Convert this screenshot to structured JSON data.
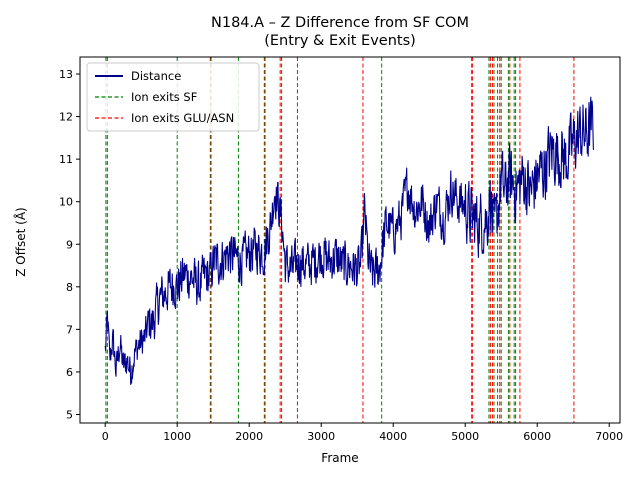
{
  "chart_data": {
    "type": "line",
    "title": "N184.A – Z Difference from SF COM",
    "subtitle": "(Entry & Exit Events)",
    "xlabel": "Frame",
    "ylabel": "Z Offset (Å)",
    "xlim": [
      -350,
      7150
    ],
    "ylim": [
      4.8,
      13.4
    ],
    "xticks": [
      0,
      1000,
      2000,
      3000,
      4000,
      5000,
      6000,
      7000
    ],
    "xtick_labels": [
      "0",
      "1000",
      "2000",
      "3000",
      "4000",
      "5000",
      "6000",
      "7000"
    ],
    "yticks": [
      5,
      6,
      7,
      8,
      9,
      10,
      11,
      12,
      13
    ],
    "ytick_labels": [
      "5",
      "6",
      "7",
      "8",
      "9",
      "10",
      "11",
      "12",
      "13"
    ],
    "grid": false,
    "legend_position": "upper-left",
    "legend": [
      {
        "label": "Distance",
        "style": "solid",
        "color": "#00008b"
      },
      {
        "label": "Ion exits SF",
        "style": "dashed",
        "color": "#008000"
      },
      {
        "label": "Ion exits GLU/ASN",
        "style": "dashed",
        "color": "#ff0000"
      }
    ],
    "series": [
      {
        "name": "Distance",
        "color": "#00008b",
        "points": [
          [
            0,
            6.5
          ],
          [
            30,
            7.3
          ],
          [
            60,
            6.2
          ],
          [
            100,
            6.8
          ],
          [
            150,
            6.0
          ],
          [
            200,
            6.7
          ],
          [
            250,
            6.1
          ],
          [
            300,
            6.3
          ],
          [
            350,
            6.0
          ],
          [
            400,
            6.4
          ],
          [
            450,
            6.6
          ],
          [
            500,
            6.7
          ],
          [
            550,
            6.8
          ],
          [
            600,
            7.2
          ],
          [
            650,
            7.1
          ],
          [
            700,
            7.4
          ],
          [
            750,
            7.7
          ],
          [
            800,
            7.8
          ],
          [
            850,
            7.9
          ],
          [
            900,
            8.0
          ],
          [
            950,
            8.1
          ],
          [
            1000,
            8.0
          ],
          [
            1100,
            8.3
          ],
          [
            1200,
            8.2
          ],
          [
            1300,
            8.0
          ],
          [
            1400,
            8.3
          ],
          [
            1450,
            8.2
          ],
          [
            1500,
            8.6
          ],
          [
            1600,
            8.6
          ],
          [
            1700,
            8.8
          ],
          [
            1800,
            8.7
          ],
          [
            1900,
            8.6
          ],
          [
            2000,
            8.8
          ],
          [
            2100,
            8.9
          ],
          [
            2200,
            8.8
          ],
          [
            2300,
            9.5
          ],
          [
            2350,
            10.3
          ],
          [
            2400,
            10.0
          ],
          [
            2450,
            9.5
          ],
          [
            2500,
            8.5
          ],
          [
            2600,
            8.4
          ],
          [
            2700,
            8.6
          ],
          [
            2800,
            8.5
          ],
          [
            2900,
            8.6
          ],
          [
            3000,
            8.8
          ],
          [
            3100,
            8.6
          ],
          [
            3200,
            8.7
          ],
          [
            3300,
            8.5
          ],
          [
            3400,
            8.5
          ],
          [
            3500,
            8.4
          ],
          [
            3550,
            8.5
          ],
          [
            3600,
            9.8
          ],
          [
            3650,
            8.6
          ],
          [
            3700,
            8.3
          ],
          [
            3800,
            8.4
          ],
          [
            3900,
            9.5
          ],
          [
            4000,
            9.3
          ],
          [
            4100,
            9.6
          ],
          [
            4200,
            10.4
          ],
          [
            4300,
            9.8
          ],
          [
            4400,
            10.0
          ],
          [
            4500,
            9.4
          ],
          [
            4600,
            10.0
          ],
          [
            4700,
            9.6
          ],
          [
            4800,
            10.3
          ],
          [
            4900,
            10.0
          ],
          [
            5000,
            9.9
          ],
          [
            5050,
            9.7
          ],
          [
            5100,
            9.6
          ],
          [
            5200,
            9.5
          ],
          [
            5300,
            9.6
          ],
          [
            5350,
            10.2
          ],
          [
            5400,
            9.2
          ],
          [
            5450,
            9.8
          ],
          [
            5500,
            10.5
          ],
          [
            5550,
            10.2
          ],
          [
            5600,
            10.6
          ],
          [
            5700,
            10.3
          ],
          [
            5750,
            10.4
          ],
          [
            5800,
            10.6
          ],
          [
            5900,
            10.2
          ],
          [
            6000,
            10.6
          ],
          [
            6100,
            10.8
          ],
          [
            6200,
            11.2
          ],
          [
            6300,
            11.1
          ],
          [
            6400,
            11.0
          ],
          [
            6500,
            11.4
          ],
          [
            6600,
            11.6
          ],
          [
            6700,
            11.6
          ],
          [
            6780,
            11.8
          ]
        ]
      }
    ],
    "vlines": {
      "ion_exits_sf": [
        10,
        30,
        1000,
        1460,
        1850,
        2210,
        2450,
        3840,
        5090,
        5330,
        5400,
        5500,
        5600,
        5680
      ],
      "ion_exits_glu_asn": [
        1470,
        2220,
        2430,
        2670,
        3580,
        5100,
        5350,
        5380,
        5450,
        5480,
        5620,
        5700,
        5760,
        6510
      ]
    }
  }
}
